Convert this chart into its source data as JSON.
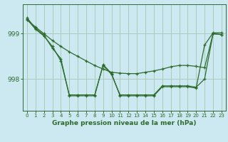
{
  "background_color": "#cce8f0",
  "grid_color": "#aaccbb",
  "line_color": "#2d6b2d",
  "xlabel": "Graphe pression niveau de la mer (hPa)",
  "hours": [
    0,
    1,
    2,
    3,
    4,
    5,
    6,
    7,
    8,
    9,
    10,
    11,
    12,
    13,
    14,
    15,
    16,
    17,
    18,
    19,
    20,
    21,
    22,
    23
  ],
  "line1": [
    999.3,
    999.15,
    999.0,
    998.85,
    998.72,
    998.6,
    998.5,
    998.4,
    998.3,
    998.22,
    998.15,
    998.13,
    998.12,
    998.12,
    998.15,
    998.18,
    998.22,
    998.27,
    998.3,
    998.3,
    998.28,
    998.25,
    999.0,
    998.98
  ],
  "line2": [
    999.32,
    999.1,
    998.95,
    998.72,
    998.4,
    997.65,
    997.65,
    997.65,
    997.65,
    998.3,
    998.1,
    997.65,
    997.65,
    997.65,
    997.65,
    997.65,
    997.85,
    997.85,
    997.85,
    997.85,
    997.82,
    998.0,
    999.0,
    998.98
  ],
  "line3": [
    999.35,
    999.12,
    998.97,
    998.68,
    998.45,
    997.63,
    997.63,
    997.63,
    997.63,
    998.32,
    998.12,
    997.63,
    997.63,
    997.63,
    997.63,
    997.63,
    997.83,
    997.83,
    997.83,
    997.83,
    997.8,
    998.75,
    999.02,
    999.02
  ],
  "yticks": [
    998,
    999
  ],
  "ylim": [
    997.3,
    999.65
  ],
  "xlim": [
    -0.5,
    23.5
  ]
}
